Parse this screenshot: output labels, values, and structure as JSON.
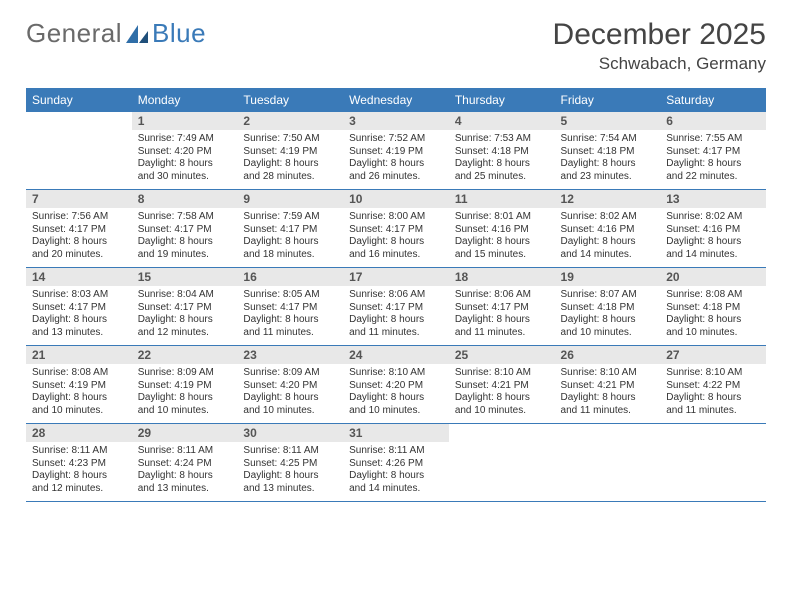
{
  "brand": {
    "word1": "General",
    "word2": "Blue"
  },
  "title": {
    "month": "December 2025",
    "location": "Schwabach, Germany"
  },
  "colors": {
    "header_bg": "#3a7ab8",
    "header_fg": "#ffffff",
    "daynum_bg": "#e8e8e8",
    "daynum_fg": "#555555",
    "row_border": "#3a7ab8",
    "text": "#333333",
    "background": "#ffffff"
  },
  "typography": {
    "month_fontsize": 30,
    "location_fontsize": 17,
    "header_fontsize": 12,
    "daynum_fontsize": 12,
    "body_fontsize": 10,
    "logo_fontsize": 26
  },
  "calendar": {
    "columns": [
      "Sunday",
      "Monday",
      "Tuesday",
      "Wednesday",
      "Thursday",
      "Friday",
      "Saturday"
    ],
    "weeks": [
      [
        null,
        {
          "n": "1",
          "sr": "7:49 AM",
          "ss": "4:20 PM",
          "dl": "8 hours and 30 minutes."
        },
        {
          "n": "2",
          "sr": "7:50 AM",
          "ss": "4:19 PM",
          "dl": "8 hours and 28 minutes."
        },
        {
          "n": "3",
          "sr": "7:52 AM",
          "ss": "4:19 PM",
          "dl": "8 hours and 26 minutes."
        },
        {
          "n": "4",
          "sr": "7:53 AM",
          "ss": "4:18 PM",
          "dl": "8 hours and 25 minutes."
        },
        {
          "n": "5",
          "sr": "7:54 AM",
          "ss": "4:18 PM",
          "dl": "8 hours and 23 minutes."
        },
        {
          "n": "6",
          "sr": "7:55 AM",
          "ss": "4:17 PM",
          "dl": "8 hours and 22 minutes."
        }
      ],
      [
        {
          "n": "7",
          "sr": "7:56 AM",
          "ss": "4:17 PM",
          "dl": "8 hours and 20 minutes."
        },
        {
          "n": "8",
          "sr": "7:58 AM",
          "ss": "4:17 PM",
          "dl": "8 hours and 19 minutes."
        },
        {
          "n": "9",
          "sr": "7:59 AM",
          "ss": "4:17 PM",
          "dl": "8 hours and 18 minutes."
        },
        {
          "n": "10",
          "sr": "8:00 AM",
          "ss": "4:17 PM",
          "dl": "8 hours and 16 minutes."
        },
        {
          "n": "11",
          "sr": "8:01 AM",
          "ss": "4:16 PM",
          "dl": "8 hours and 15 minutes."
        },
        {
          "n": "12",
          "sr": "8:02 AM",
          "ss": "4:16 PM",
          "dl": "8 hours and 14 minutes."
        },
        {
          "n": "13",
          "sr": "8:02 AM",
          "ss": "4:16 PM",
          "dl": "8 hours and 14 minutes."
        }
      ],
      [
        {
          "n": "14",
          "sr": "8:03 AM",
          "ss": "4:17 PM",
          "dl": "8 hours and 13 minutes."
        },
        {
          "n": "15",
          "sr": "8:04 AM",
          "ss": "4:17 PM",
          "dl": "8 hours and 12 minutes."
        },
        {
          "n": "16",
          "sr": "8:05 AM",
          "ss": "4:17 PM",
          "dl": "8 hours and 11 minutes."
        },
        {
          "n": "17",
          "sr": "8:06 AM",
          "ss": "4:17 PM",
          "dl": "8 hours and 11 minutes."
        },
        {
          "n": "18",
          "sr": "8:06 AM",
          "ss": "4:17 PM",
          "dl": "8 hours and 11 minutes."
        },
        {
          "n": "19",
          "sr": "8:07 AM",
          "ss": "4:18 PM",
          "dl": "8 hours and 10 minutes."
        },
        {
          "n": "20",
          "sr": "8:08 AM",
          "ss": "4:18 PM",
          "dl": "8 hours and 10 minutes."
        }
      ],
      [
        {
          "n": "21",
          "sr": "8:08 AM",
          "ss": "4:19 PM",
          "dl": "8 hours and 10 minutes."
        },
        {
          "n": "22",
          "sr": "8:09 AM",
          "ss": "4:19 PM",
          "dl": "8 hours and 10 minutes."
        },
        {
          "n": "23",
          "sr": "8:09 AM",
          "ss": "4:20 PM",
          "dl": "8 hours and 10 minutes."
        },
        {
          "n": "24",
          "sr": "8:10 AM",
          "ss": "4:20 PM",
          "dl": "8 hours and 10 minutes."
        },
        {
          "n": "25",
          "sr": "8:10 AM",
          "ss": "4:21 PM",
          "dl": "8 hours and 10 minutes."
        },
        {
          "n": "26",
          "sr": "8:10 AM",
          "ss": "4:21 PM",
          "dl": "8 hours and 11 minutes."
        },
        {
          "n": "27",
          "sr": "8:10 AM",
          "ss": "4:22 PM",
          "dl": "8 hours and 11 minutes."
        }
      ],
      [
        {
          "n": "28",
          "sr": "8:11 AM",
          "ss": "4:23 PM",
          "dl": "8 hours and 12 minutes."
        },
        {
          "n": "29",
          "sr": "8:11 AM",
          "ss": "4:24 PM",
          "dl": "8 hours and 13 minutes."
        },
        {
          "n": "30",
          "sr": "8:11 AM",
          "ss": "4:25 PM",
          "dl": "8 hours and 13 minutes."
        },
        {
          "n": "31",
          "sr": "8:11 AM",
          "ss": "4:26 PM",
          "dl": "8 hours and 14 minutes."
        },
        null,
        null,
        null
      ]
    ],
    "labels": {
      "sunrise": "Sunrise:",
      "sunset": "Sunset:",
      "daylight": "Daylight:"
    }
  }
}
